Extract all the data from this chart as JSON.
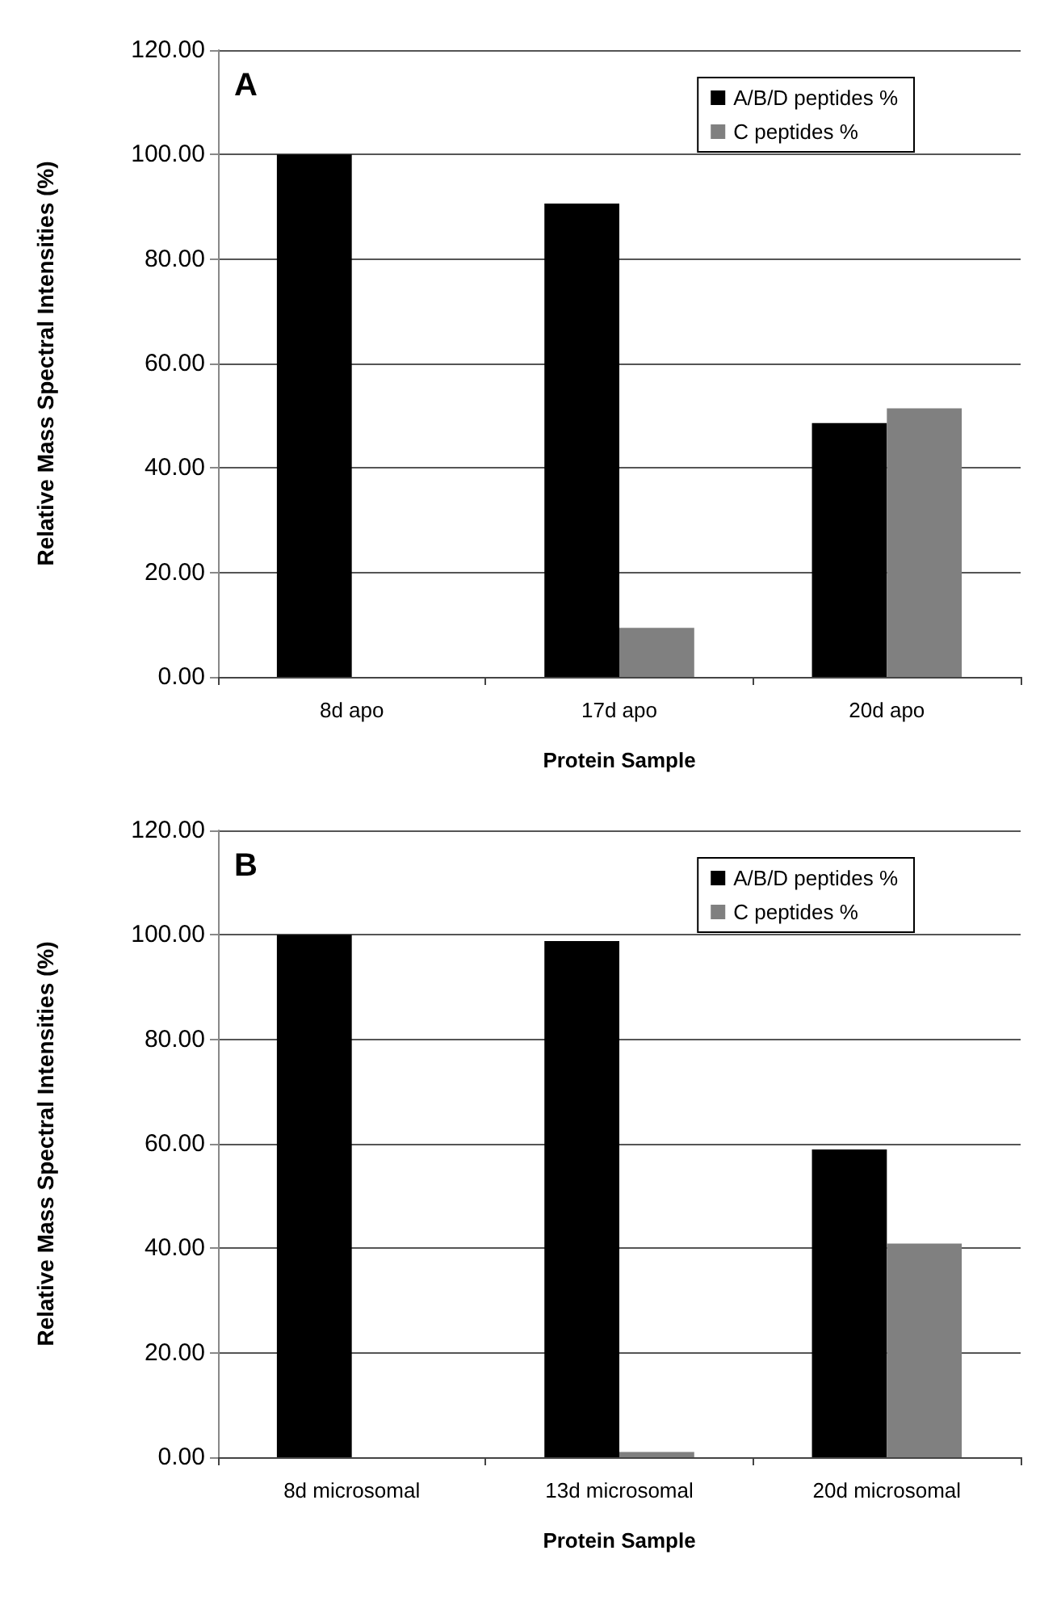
{
  "chart_data": [
    {
      "type": "bar",
      "title": "A",
      "xlabel": "Protein Sample",
      "ylabel": "Relative Mass Spectral Intensities (%)",
      "categories": [
        "8d apo",
        "17d apo",
        "20d apo"
      ],
      "series": [
        {
          "name": "A/B/D peptides %",
          "color": "#000000",
          "values": [
            100,
            90.6,
            48.6
          ]
        },
        {
          "name": "C peptides %",
          "color": "#808080",
          "values": [
            0,
            9.4,
            51.4
          ]
        }
      ],
      "ylim": [
        0,
        120
      ],
      "yticks": [
        {
          "value": 0,
          "label": "0.00"
        },
        {
          "value": 20,
          "label": "20.00"
        },
        {
          "value": 40,
          "label": "40.00"
        },
        {
          "value": 60,
          "label": "60.00"
        },
        {
          "value": 80,
          "label": "80.00"
        },
        {
          "value": 100,
          "label": "100.00"
        },
        {
          "value": 120,
          "label": "120.00"
        }
      ],
      "grid": "y",
      "legend": "top right"
    },
    {
      "type": "bar",
      "title": "B",
      "xlabel": "Protein Sample",
      "ylabel": "Relative Mass Spectral Intensities (%)",
      "categories": [
        "8d microsomal",
        "13d microsomal",
        "20d microsomal"
      ],
      "series": [
        {
          "name": "A/B/D peptides %",
          "color": "#000000",
          "values": [
            100,
            98.8,
            58.9
          ]
        },
        {
          "name": "C peptides %",
          "color": "#808080",
          "values": [
            0,
            1.0,
            40.9
          ]
        }
      ],
      "ylim": [
        0,
        120
      ],
      "yticks": [
        {
          "value": 0,
          "label": "0.00"
        },
        {
          "value": 20,
          "label": "20.00"
        },
        {
          "value": 40,
          "label": "40.00"
        },
        {
          "value": 60,
          "label": "60.00"
        },
        {
          "value": 80,
          "label": "80.00"
        },
        {
          "value": 100,
          "label": "100.00"
        },
        {
          "value": 120,
          "label": "120.00"
        }
      ],
      "grid": "y",
      "legend": "top right"
    }
  ]
}
